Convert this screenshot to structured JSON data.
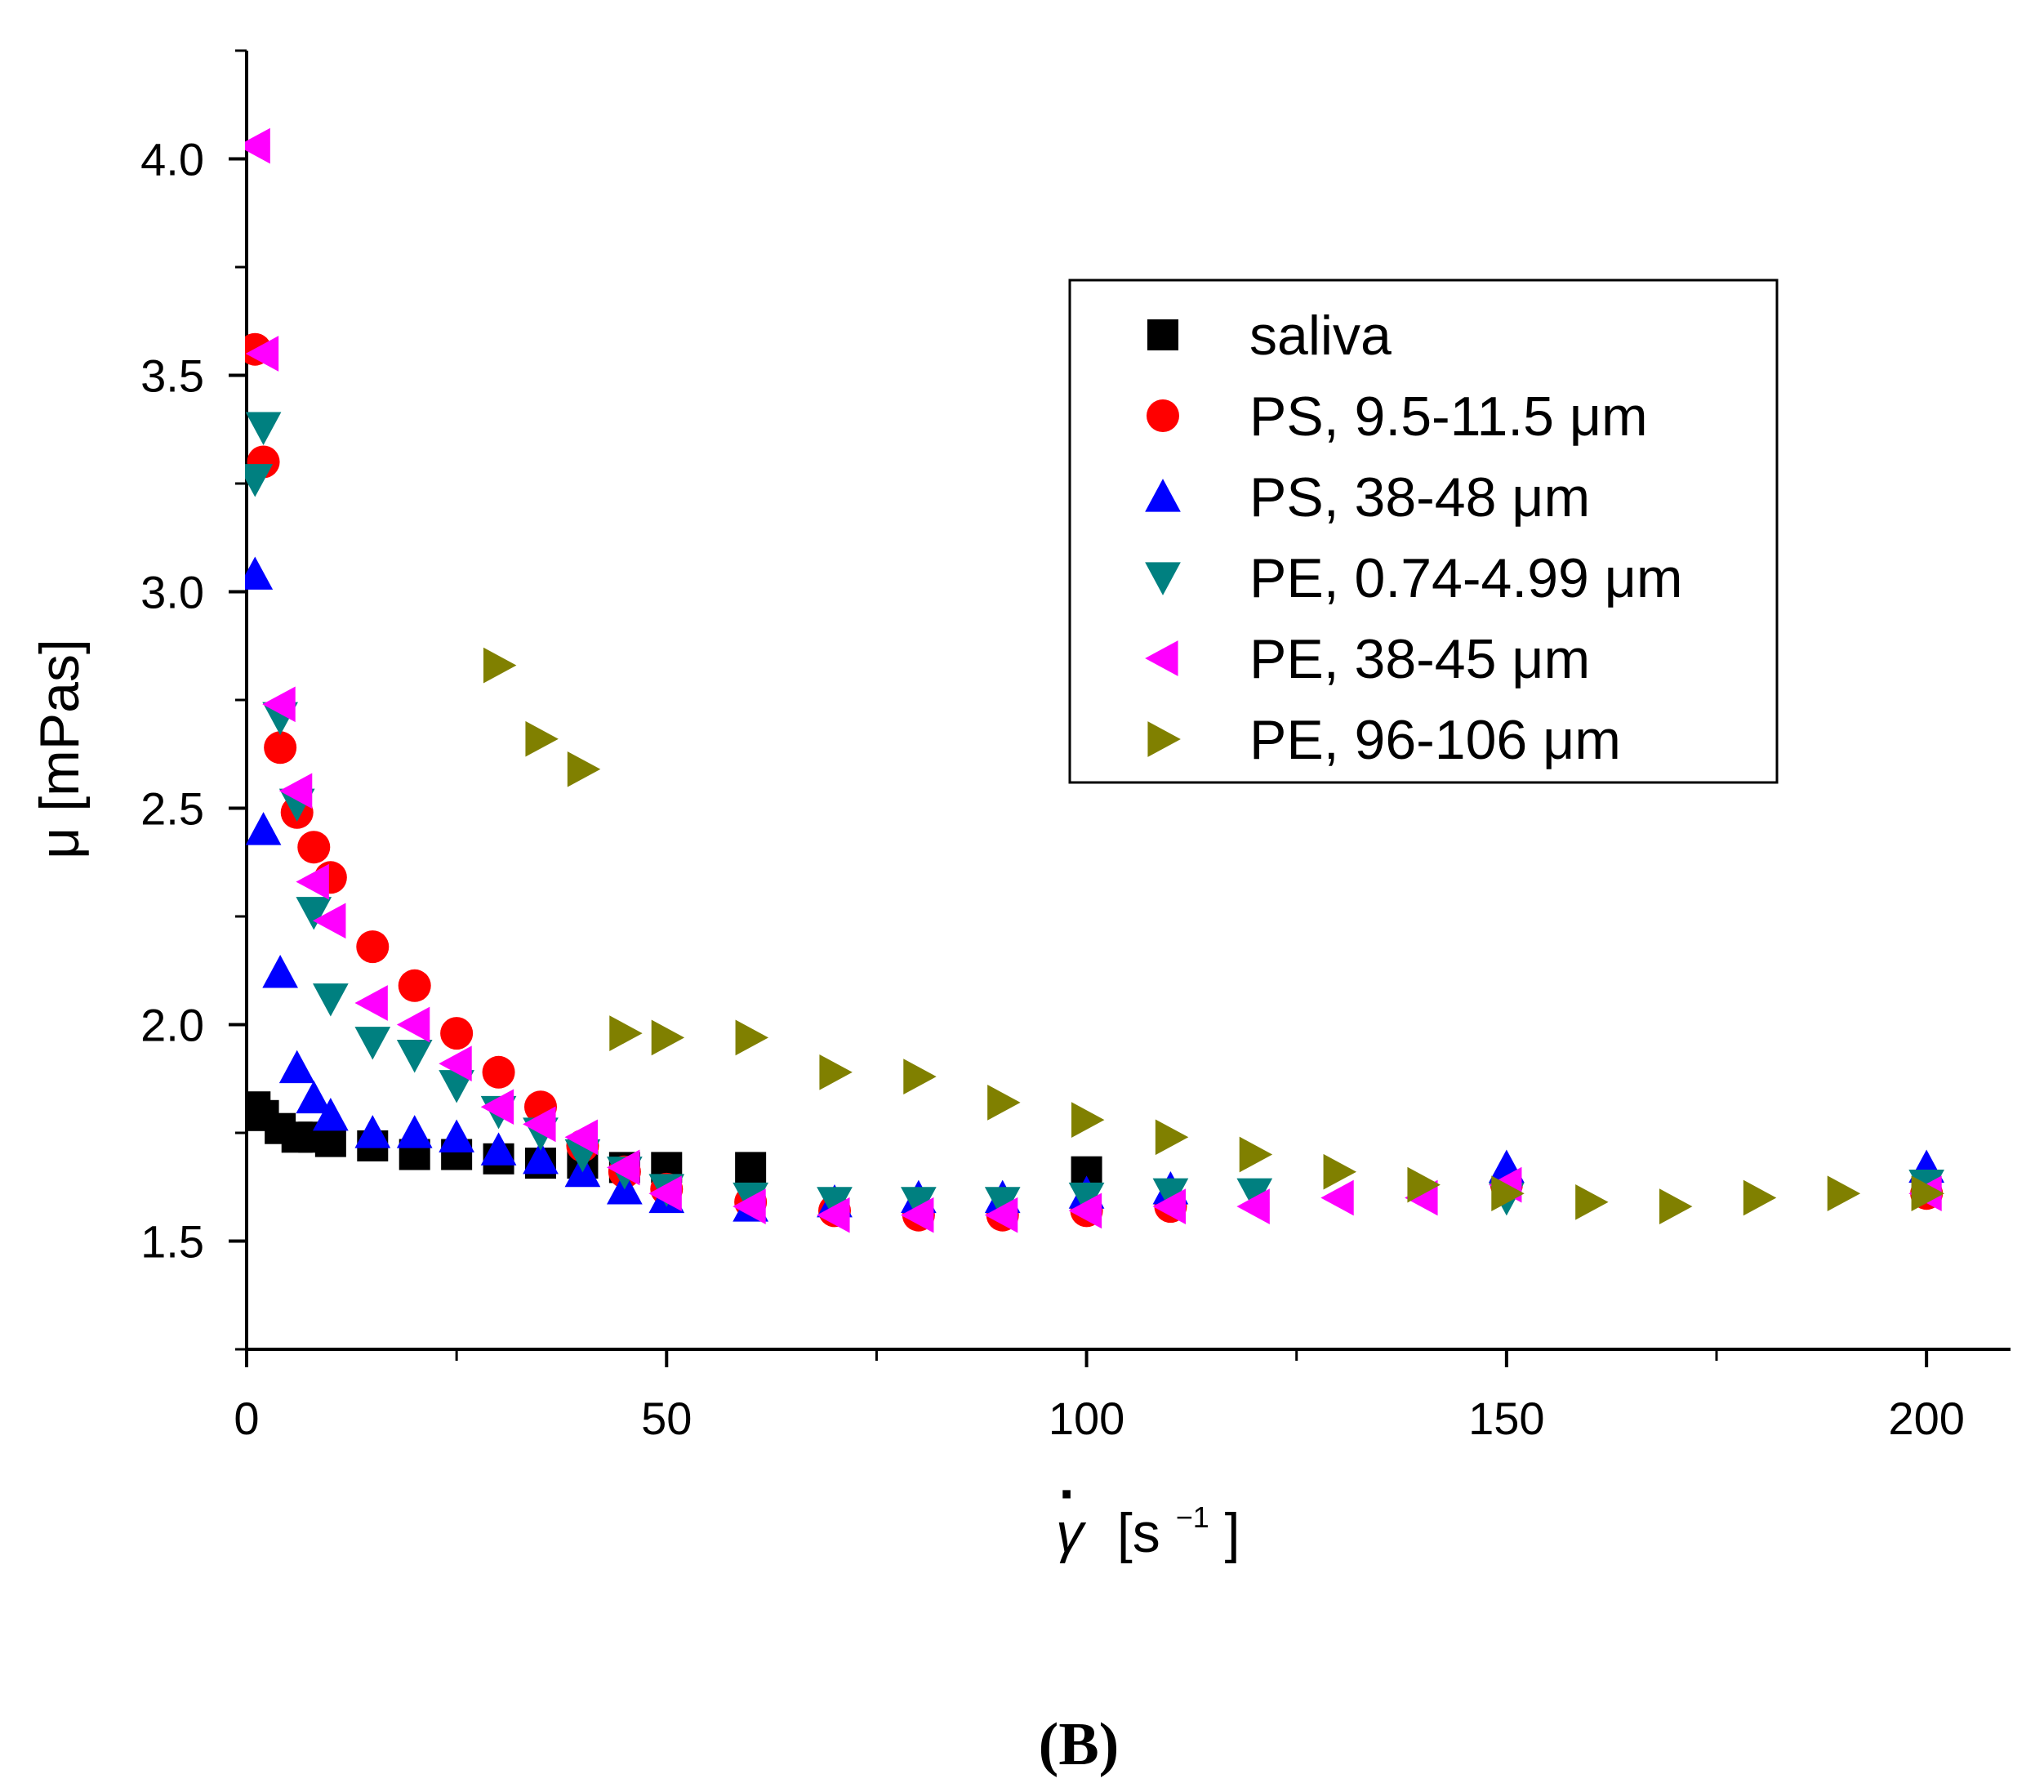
{
  "chart_data": {
    "type": "scatter",
    "panel_label": "(B)",
    "xlabel": "γ̇ [s⁻¹]",
    "xlabel_symbol": "γ",
    "xlabel_dot": "·",
    "xlabel_unit_open": "[s",
    "xlabel_unit_exp": "−1",
    "xlabel_unit_close": "]",
    "ylabel": "μ [mPas]",
    "xlim": [
      0,
      210
    ],
    "ylim": [
      1.25,
      4.25
    ],
    "xticks": [
      0,
      50,
      100,
      150,
      200
    ],
    "xtick_labels": [
      "0",
      "50",
      "100",
      "150",
      "200"
    ],
    "yticks": [
      1.5,
      2.0,
      2.5,
      3.0,
      3.5,
      4.0
    ],
    "ytick_labels": [
      "1.5",
      "2.0",
      "2.5",
      "3.0",
      "3.5",
      "4.0"
    ],
    "x_minor_step": 25,
    "y_minor_step": 0.25,
    "legend_position": "upper-right",
    "series": [
      {
        "name": "saliva",
        "marker": "square",
        "color": "#000000",
        "x": [
          1,
          2,
          4,
          6,
          8,
          10,
          15,
          20,
          25,
          30,
          35,
          40,
          45,
          50,
          60,
          100
        ],
        "y": [
          1.81,
          1.79,
          1.76,
          1.74,
          1.74,
          1.73,
          1.72,
          1.7,
          1.7,
          1.69,
          1.68,
          1.68,
          1.67,
          1.67,
          1.67,
          1.66
        ]
      },
      {
        "name": "PS, 9.5-11.5 μm",
        "marker": "circle",
        "color": "#ff0000",
        "x": [
          1,
          2,
          4,
          6,
          8,
          10,
          15,
          20,
          25,
          30,
          35,
          40,
          45,
          50,
          60,
          70,
          80,
          90,
          100,
          110,
          150,
          200
        ],
        "y": [
          3.56,
          3.3,
          2.64,
          2.49,
          2.41,
          2.34,
          2.18,
          2.09,
          1.98,
          1.89,
          1.81,
          1.72,
          1.66,
          1.62,
          1.59,
          1.57,
          1.56,
          1.56,
          1.57,
          1.58,
          1.63,
          1.61
        ]
      },
      {
        "name": "PS, 38-48 μm",
        "marker": "triangle-up",
        "color": "#0000ff",
        "x": [
          1,
          2,
          4,
          6,
          8,
          10,
          15,
          20,
          25,
          30,
          35,
          40,
          45,
          50,
          60,
          70,
          80,
          90,
          100,
          110,
          150,
          200
        ],
        "y": [
          3.04,
          2.45,
          2.12,
          1.9,
          1.83,
          1.79,
          1.75,
          1.75,
          1.74,
          1.71,
          1.69,
          1.66,
          1.62,
          1.6,
          1.58,
          1.59,
          1.6,
          1.6,
          1.61,
          1.62,
          1.67,
          1.67
        ]
      },
      {
        "name": "PE, 0.74-4.99 μm",
        "marker": "triangle-down",
        "color": "#008080",
        "x": [
          1,
          2,
          4,
          6,
          8,
          10,
          15,
          20,
          25,
          30,
          35,
          40,
          45,
          50,
          60,
          70,
          80,
          90,
          100,
          110,
          120,
          150,
          200
        ],
        "y": [
          3.26,
          3.38,
          2.71,
          2.51,
          2.26,
          2.06,
          1.96,
          1.93,
          1.86,
          1.8,
          1.75,
          1.7,
          1.66,
          1.62,
          1.6,
          1.59,
          1.59,
          1.59,
          1.6,
          1.61,
          1.61,
          1.6,
          1.63
        ]
      },
      {
        "name": "PE, 38-45 μm",
        "marker": "triangle-left",
        "color": "#ff00ff",
        "x": [
          1,
          2,
          4,
          6,
          8,
          10,
          15,
          20,
          25,
          30,
          35,
          40,
          45,
          50,
          60,
          70,
          80,
          90,
          100,
          110,
          120,
          130,
          140,
          150,
          200
        ],
        "y": [
          4.03,
          3.55,
          2.74,
          2.54,
          2.33,
          2.24,
          2.05,
          2.0,
          1.91,
          1.81,
          1.77,
          1.74,
          1.67,
          1.61,
          1.58,
          1.56,
          1.56,
          1.56,
          1.57,
          1.58,
          1.58,
          1.6,
          1.6,
          1.63,
          1.61
        ]
      },
      {
        "name": "PE, 96-106 μm",
        "marker": "triangle-right",
        "color": "#808000",
        "x": [
          30,
          35,
          40,
          45,
          50,
          60,
          70,
          80,
          90,
          100,
          110,
          120,
          130,
          140,
          150,
          160,
          170,
          180,
          190,
          200
        ],
        "y": [
          2.83,
          2.66,
          2.59,
          1.98,
          1.97,
          1.97,
          1.89,
          1.88,
          1.82,
          1.78,
          1.74,
          1.7,
          1.66,
          1.63,
          1.61,
          1.59,
          1.58,
          1.6,
          1.61,
          1.61
        ]
      }
    ]
  }
}
